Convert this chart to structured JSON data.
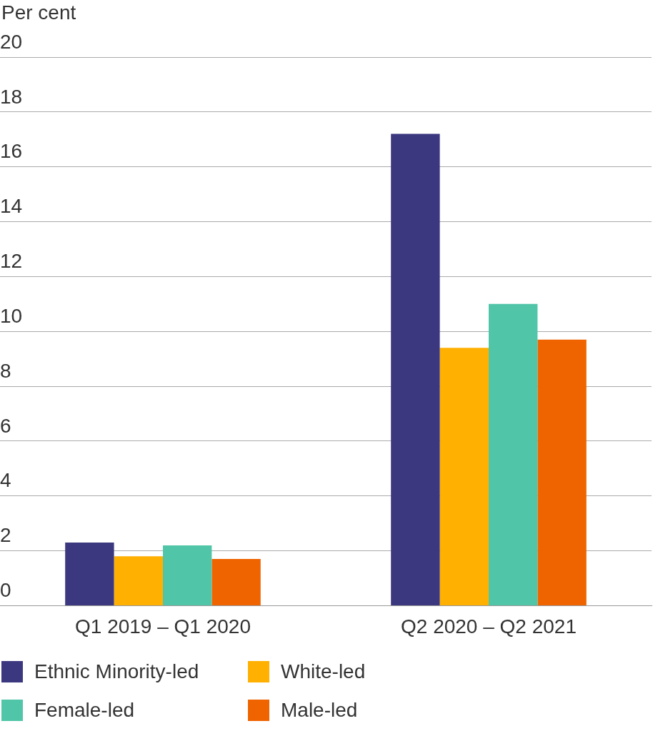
{
  "chart_data": {
    "type": "bar",
    "ylabel": "Per cent",
    "categories": [
      "Q1 2019 – Q1 2020",
      "Q2 2020 – Q2 2021"
    ],
    "series": [
      {
        "name": "Ethnic Minority-led",
        "color": "#3b3880",
        "values": [
          2.3,
          17.2
        ]
      },
      {
        "name": "White-led",
        "color": "#ffb000",
        "values": [
          1.8,
          9.4
        ]
      },
      {
        "name": "Female-led",
        "color": "#50c5a8",
        "values": [
          2.2,
          11.0
        ]
      },
      {
        "name": "Male-led",
        "color": "#f06400",
        "values": [
          1.7,
          9.7
        ]
      }
    ],
    "ylim": [
      0,
      20
    ],
    "yticks": [
      0,
      2,
      4,
      6,
      8,
      10,
      12,
      14,
      16,
      18,
      20
    ],
    "grid": "y",
    "legend": "bottom"
  }
}
